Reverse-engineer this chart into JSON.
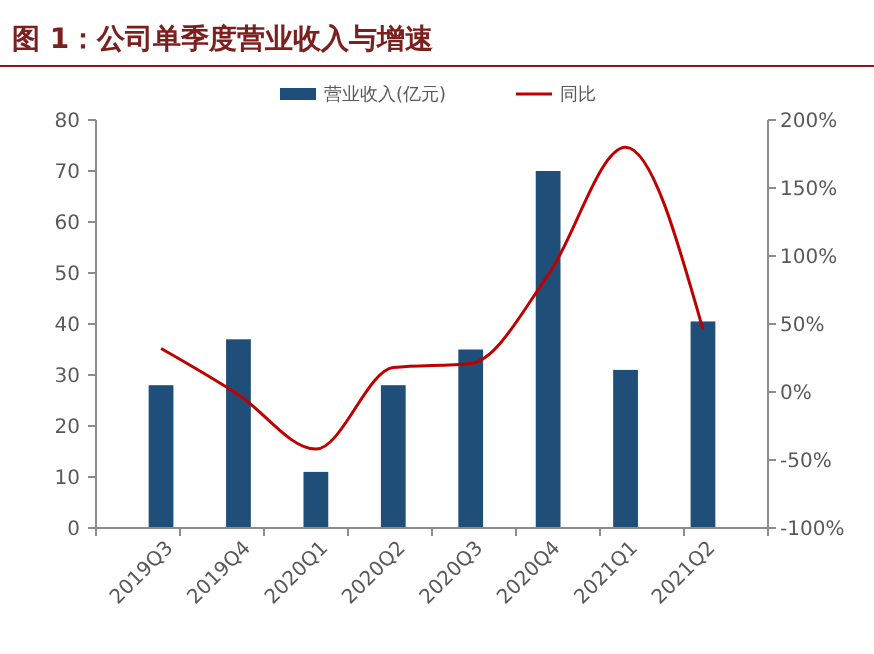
{
  "chart_data": {
    "type": "bar",
    "title": "图 1：公司单季度营业收入与增速",
    "categories": [
      "2019Q3",
      "2019Q4",
      "2020Q1",
      "2020Q2",
      "2020Q3",
      "2020Q4",
      "2021Q1",
      "2021Q2"
    ],
    "series": [
      {
        "name": "营业收入(亿元)",
        "color": "#1f4e79",
        "values": [
          28,
          37,
          11,
          28,
          35,
          70,
          31,
          40.5
        ]
      },
      {
        "name": "同比",
        "type": "line",
        "axis": "y2",
        "color": "#c00000",
        "values": [
          32,
          -2,
          -42,
          18,
          21,
          86,
          180,
          46
        ]
      }
    ],
    "ylim": [
      0,
      80
    ],
    "yticks": [
      0,
      10,
      20,
      30,
      40,
      50,
      60,
      70,
      80
    ],
    "y2lim": [
      -100,
      200
    ],
    "y2ticks": [
      {
        "value": -100,
        "label": "-100%"
      },
      {
        "value": -50,
        "label": "-50%"
      },
      {
        "value": 0,
        "label": "0%"
      },
      {
        "value": 50,
        "label": "50%"
      },
      {
        "value": 100,
        "label": "100%"
      },
      {
        "value": 150,
        "label": "150%"
      },
      {
        "value": 200,
        "label": "200%"
      }
    ],
    "legend": "top",
    "grid": false
  }
}
